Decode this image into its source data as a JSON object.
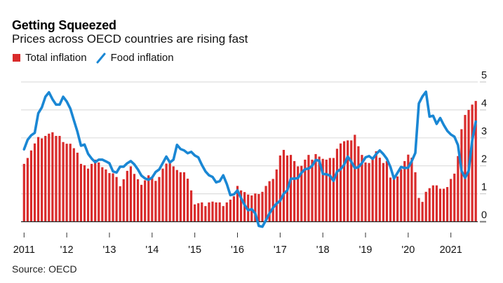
{
  "header": {
    "title": "Getting Squeezed",
    "subtitle": "Prices across OECD countries are rising fast"
  },
  "legend": {
    "items": [
      {
        "label": "Total inflation",
        "icon": "red-square-icon",
        "color": "#d92b2b"
      },
      {
        "label": "Food inflation",
        "icon": "blue-line-icon",
        "color": "#1a87d4"
      }
    ]
  },
  "source": "Source: OECD",
  "chart_data": {
    "type": "bar+line",
    "title": "Getting Squeezed",
    "subtitle": "Prices across OECD countries are rising fast",
    "xlabel": "",
    "ylabel": "",
    "x_start": "2011-01",
    "x_end": "2021-08",
    "frequency": "monthly",
    "ylim": [
      0,
      5
    ],
    "yticks": [
      0,
      1,
      2,
      3,
      4,
      5
    ],
    "ytick_labels": [
      "0",
      "1",
      "2",
      "3",
      "4",
      "5"
    ],
    "y_axis_side": "right",
    "grid": true,
    "xtick_labels": [
      "2011",
      "'12",
      "'13",
      "'14",
      "'15",
      "'16",
      "'17",
      "'18",
      "'19",
      "'20",
      "2021"
    ],
    "legend_position": "top-left",
    "colors": {
      "total": "#d92b2b",
      "food": "#1a87d4",
      "grid": "#dddddd",
      "baseline": "#222222"
    },
    "series": [
      {
        "name": "Total inflation",
        "kind": "bar",
        "values": [
          2.07,
          2.28,
          2.55,
          2.8,
          3.03,
          2.98,
          3.07,
          3.15,
          3.2,
          3.07,
          3.07,
          2.85,
          2.79,
          2.79,
          2.63,
          2.47,
          2.07,
          2.02,
          1.9,
          2.07,
          2.22,
          2.12,
          1.95,
          1.87,
          1.74,
          1.73,
          1.6,
          1.27,
          1.52,
          1.82,
          1.98,
          1.71,
          1.52,
          1.32,
          1.48,
          1.66,
          1.6,
          1.46,
          1.6,
          1.9,
          2.08,
          2.1,
          1.98,
          1.85,
          1.77,
          1.77,
          1.54,
          1.12,
          0.62,
          0.66,
          0.69,
          0.56,
          0.69,
          0.72,
          0.69,
          0.69,
          0.56,
          0.69,
          0.79,
          0.91,
          1.28,
          1.12,
          1.06,
          0.97,
          0.94,
          1.01,
          0.99,
          1.07,
          1.28,
          1.45,
          1.53,
          1.87,
          2.37,
          2.57,
          2.37,
          2.39,
          2.17,
          1.98,
          2.0,
          2.22,
          2.39,
          2.22,
          2.42,
          2.33,
          2.25,
          2.22,
          2.28,
          2.28,
          2.61,
          2.8,
          2.88,
          2.91,
          2.91,
          3.11,
          2.7,
          2.39,
          2.12,
          2.1,
          2.28,
          2.52,
          2.29,
          2.1,
          2.17,
          1.58,
          1.62,
          1.62,
          1.88,
          2.17,
          2.4,
          2.29,
          1.77,
          0.85,
          0.71,
          1.07,
          1.2,
          1.3,
          1.3,
          1.18,
          1.18,
          1.24,
          1.53,
          1.72,
          2.35,
          3.31,
          3.82,
          4.0,
          4.19,
          4.32
        ]
      },
      {
        "name": "Food inflation",
        "kind": "line",
        "values": [
          2.59,
          2.93,
          3.09,
          3.18,
          3.88,
          4.09,
          4.47,
          4.63,
          4.38,
          4.19,
          4.19,
          4.47,
          4.3,
          4.05,
          3.63,
          3.22,
          2.72,
          2.76,
          2.43,
          2.26,
          2.13,
          2.22,
          2.22,
          2.16,
          2.09,
          1.8,
          1.76,
          1.97,
          1.97,
          2.09,
          2.17,
          2.05,
          1.87,
          1.65,
          1.55,
          1.5,
          1.58,
          1.78,
          1.87,
          2.1,
          2.33,
          2.12,
          2.22,
          2.75,
          2.6,
          2.55,
          2.45,
          2.5,
          2.37,
          2.3,
          2.03,
          1.8,
          1.66,
          1.6,
          1.41,
          1.45,
          1.66,
          1.35,
          0.95,
          0.98,
          1.12,
          0.85,
          0.6,
          0.41,
          0.45,
          0.3,
          -0.15,
          -0.18,
          0.05,
          0.3,
          0.5,
          0.65,
          0.75,
          1.0,
          1.12,
          1.54,
          1.54,
          1.56,
          1.75,
          1.88,
          1.9,
          2.0,
          2.21,
          2.18,
          1.71,
          1.7,
          1.65,
          1.46,
          1.79,
          1.88,
          2.04,
          2.33,
          2.15,
          1.92,
          1.95,
          2.1,
          2.3,
          2.35,
          2.25,
          2.42,
          2.55,
          2.42,
          2.25,
          1.96,
          1.54,
          1.75,
          1.96,
          1.92,
          1.93,
          2.17,
          2.46,
          4.23,
          4.48,
          4.65,
          3.76,
          3.79,
          3.5,
          3.71,
          3.46,
          3.25,
          3.12,
          3.04,
          2.74,
          1.82,
          1.57,
          1.82,
          2.91,
          3.58
        ]
      }
    ]
  }
}
